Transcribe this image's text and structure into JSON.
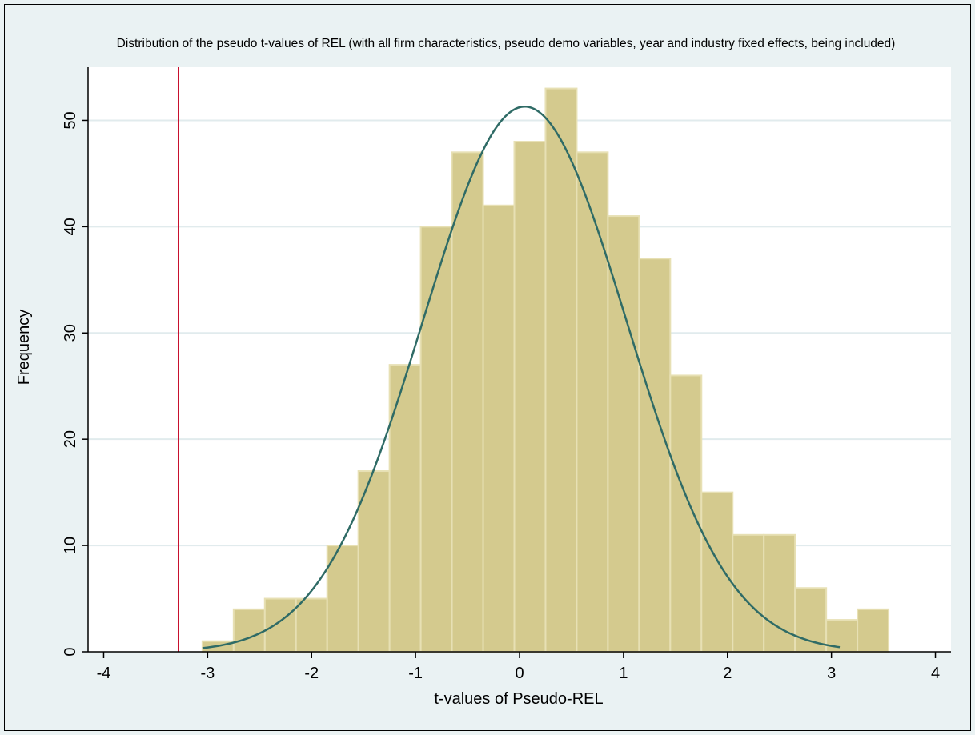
{
  "chart_data": {
    "type": "bar",
    "title": "Distribution of the pseudo t-values of REL (with all firm characteristics, pseudo demo variables, year and industry fixed effects, being included)",
    "xlabel": "t-values of Pseudo-REL",
    "ylabel": "Frequency",
    "xlim": [
      -4.15,
      4.15
    ],
    "ylim": [
      0,
      55
    ],
    "xticks": [
      -4,
      -3,
      -2,
      -1,
      0,
      1,
      2,
      3,
      4
    ],
    "xtick_labels": [
      "-4",
      "-3",
      "-2",
      "-1",
      "0",
      "1",
      "2",
      "3",
      "4"
    ],
    "yticks": [
      0,
      10,
      20,
      30,
      40,
      50
    ],
    "ytick_labels": [
      "0",
      "10",
      "20",
      "30",
      "40",
      "50"
    ],
    "grid": "horizontal",
    "bins": {
      "start": -3.05,
      "width": 0.3,
      "counts": [
        1,
        4,
        5,
        5,
        10,
        17,
        27,
        40,
        47,
        42,
        48,
        53,
        47,
        41,
        37,
        26,
        15,
        11,
        11,
        6,
        3,
        4
      ]
    },
    "normal_curve": {
      "mean": 0.05,
      "sd": 0.98,
      "peak": 51.3,
      "x_range": [
        -3.05,
        3.08
      ]
    },
    "reference_line": {
      "x": -3.28
    },
    "colors": {
      "background": "#eaf2f3",
      "plot_area": "#ffffff",
      "bar_fill": "#d4ca8e",
      "bar_edge": "#e7e0b4",
      "curve": "#2f6b66",
      "reference_line": "#c8102e",
      "gridline": "#e1ebed",
      "axis": "#000000"
    }
  }
}
